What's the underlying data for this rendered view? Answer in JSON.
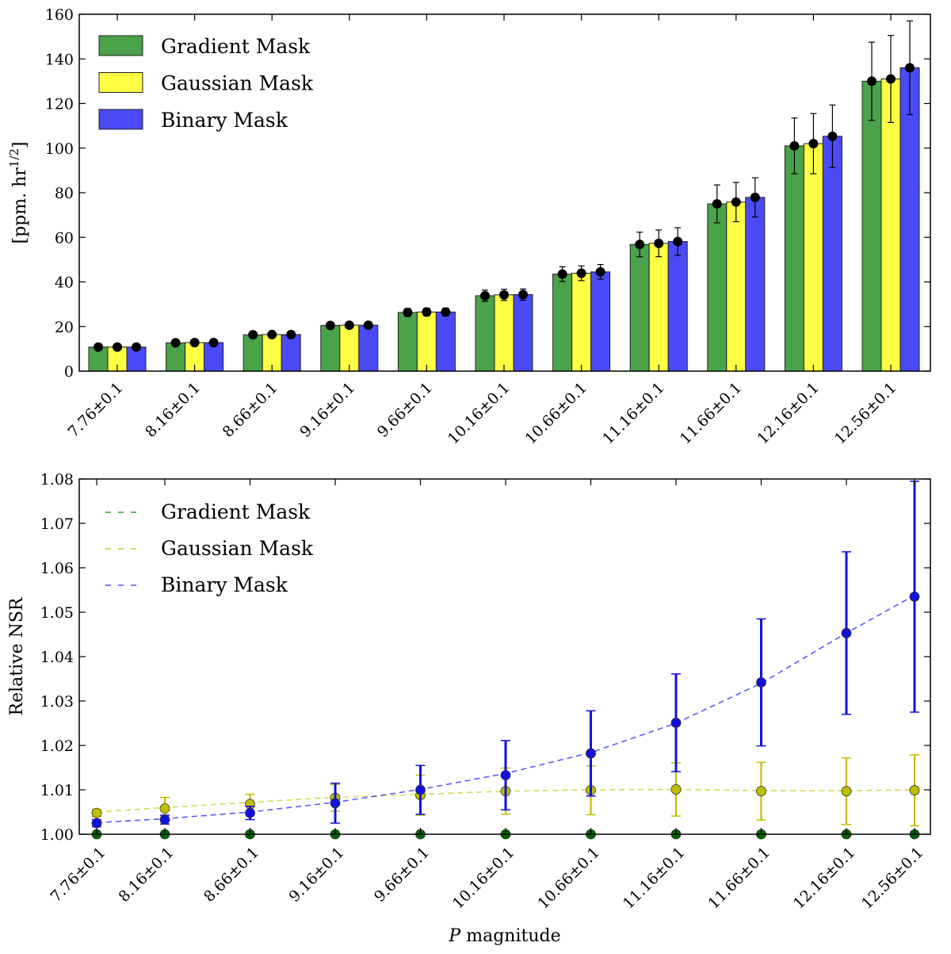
{
  "chart_data": [
    {
      "type": "bar",
      "title": "",
      "xlabel": "",
      "ylabel": "[ppm. hr^1/2]",
      "ylabel_base": "[ppm. hr",
      "ylabel_sup": "1/2",
      "ylabel_close": "]",
      "ylim": [
        0,
        160
      ],
      "yticks": [
        0,
        20,
        40,
        60,
        80,
        100,
        120,
        140,
        160
      ],
      "grid": false,
      "legend_position": "top-left",
      "categories": [
        "7.76±0.1",
        "8.16±0.1",
        "8.66±0.1",
        "9.16±0.1",
        "9.66±0.1",
        "10.16±0.1",
        "10.66±0.1",
        "11.16±0.1",
        "11.66±0.1",
        "12.16±0.1",
        "12.56±0.1"
      ],
      "series": [
        {
          "name": "Gradient Mask",
          "color": "#4aa24a",
          "values": [
            10.8,
            12.7,
            16.3,
            20.5,
            26.3,
            33.8,
            43.5,
            56.8,
            75.0,
            101.0,
            130.0
          ],
          "errors": [
            1.0,
            1.0,
            1.2,
            1.4,
            1.8,
            2.5,
            3.3,
            5.5,
            8.5,
            12.5,
            17.5
          ]
        },
        {
          "name": "Gaussian Mask",
          "color": "#ffff44",
          "values": [
            10.8,
            12.8,
            16.4,
            20.6,
            26.5,
            34.2,
            43.9,
            57.3,
            75.8,
            102.0,
            131.0
          ],
          "errors": [
            1.0,
            1.0,
            1.2,
            1.4,
            1.8,
            2.5,
            3.3,
            6.0,
            8.8,
            13.5,
            19.5
          ]
        },
        {
          "name": "Binary Mask",
          "color": "#4a4af7",
          "values": [
            10.8,
            12.8,
            16.4,
            20.6,
            26.5,
            34.3,
            44.5,
            58.1,
            77.9,
            105.3,
            136.0
          ],
          "errors": [
            1.0,
            1.0,
            1.2,
            1.4,
            1.8,
            2.5,
            3.3,
            6.2,
            8.8,
            14.0,
            21.0
          ]
        }
      ]
    },
    {
      "type": "line",
      "title": "",
      "xlabel": "P magnitude",
      "xlabel_italic": "P",
      "xlabel_rest": " magnitude",
      "ylabel": "Relative NSR",
      "ylim": [
        1.0,
        1.08
      ],
      "yticks": [
        "1.00",
        "1.01",
        "1.02",
        "1.03",
        "1.04",
        "1.05",
        "1.06",
        "1.07",
        "1.08"
      ],
      "grid": false,
      "legend_position": "top-left",
      "categories": [
        "7.76±0.1",
        "8.16±0.1",
        "8.66±0.1",
        "9.16±0.1",
        "9.66±0.1",
        "10.16±0.1",
        "10.66±0.1",
        "11.16±0.1",
        "11.66±0.1",
        "12.16±0.1",
        "12.56±0.1"
      ],
      "x": [
        7.76,
        8.16,
        8.66,
        9.16,
        9.66,
        10.16,
        10.66,
        11.16,
        11.66,
        12.16,
        12.56
      ],
      "series": [
        {
          "name": "Gradient Mask",
          "color": "#2ca02c",
          "marker_color": "#006400",
          "linestyle": "dashed",
          "values": [
            1.0,
            1.0,
            1.0,
            1.0,
            1.0,
            1.0,
            1.0,
            1.0,
            1.0,
            1.0,
            1.0
          ],
          "errors": [
            0,
            0,
            0,
            0,
            0,
            0,
            0,
            0,
            0,
            0,
            0
          ]
        },
        {
          "name": "Gaussian Mask",
          "color": "#cccc33",
          "marker_color": "#bfbf00",
          "linestyle": "dashed",
          "values": [
            1.0048,
            1.0058,
            1.0068,
            1.0082,
            1.0088,
            1.0097,
            1.0099,
            1.0101,
            1.0097,
            1.0097,
            1.0099
          ],
          "errors": [
            0.0008,
            0.0025,
            0.0022,
            0.003,
            0.0045,
            0.0052,
            0.0055,
            0.006,
            0.0065,
            0.0075,
            0.008
          ]
        },
        {
          "name": "Binary Mask",
          "color": "#4d4dff",
          "marker_color": "#1111dd",
          "linestyle": "dashed",
          "values": [
            1.0025,
            1.0033,
            1.0048,
            1.007,
            1.01,
            1.0133,
            1.0182,
            1.0251,
            1.0342,
            1.0453,
            1.0535
          ],
          "errors": [
            0.0008,
            0.001,
            0.0015,
            0.0045,
            0.0055,
            0.0078,
            0.0096,
            0.011,
            0.0143,
            0.0183,
            0.026
          ]
        }
      ],
      "trend_lines": [
        {
          "name": "Gaussian Mask",
          "color": "#d8d85a",
          "points": [
            [
              7.76,
              1.005
            ],
            [
              8.16,
              1.006
            ],
            [
              8.66,
              1.0072
            ],
            [
              9.16,
              1.0083
            ],
            [
              9.66,
              1.009
            ],
            [
              10.16,
              1.0097
            ],
            [
              10.66,
              1.01
            ],
            [
              11.16,
              1.0101
            ],
            [
              11.66,
              1.0098
            ],
            [
              12.16,
              1.0098
            ],
            [
              12.56,
              1.01
            ]
          ]
        },
        {
          "name": "Binary Mask",
          "color": "#5a5aff",
          "points": [
            [
              7.76,
              1.0026
            ],
            [
              8.16,
              1.0035
            ],
            [
              8.66,
              1.005
            ],
            [
              9.16,
              1.0072
            ],
            [
              9.66,
              1.0101
            ],
            [
              10.16,
              1.0137
            ],
            [
              10.66,
              1.0184
            ],
            [
              11.16,
              1.025
            ],
            [
              11.66,
              1.034
            ],
            [
              12.16,
              1.0453
            ],
            [
              12.56,
              1.0538
            ]
          ]
        }
      ]
    }
  ]
}
